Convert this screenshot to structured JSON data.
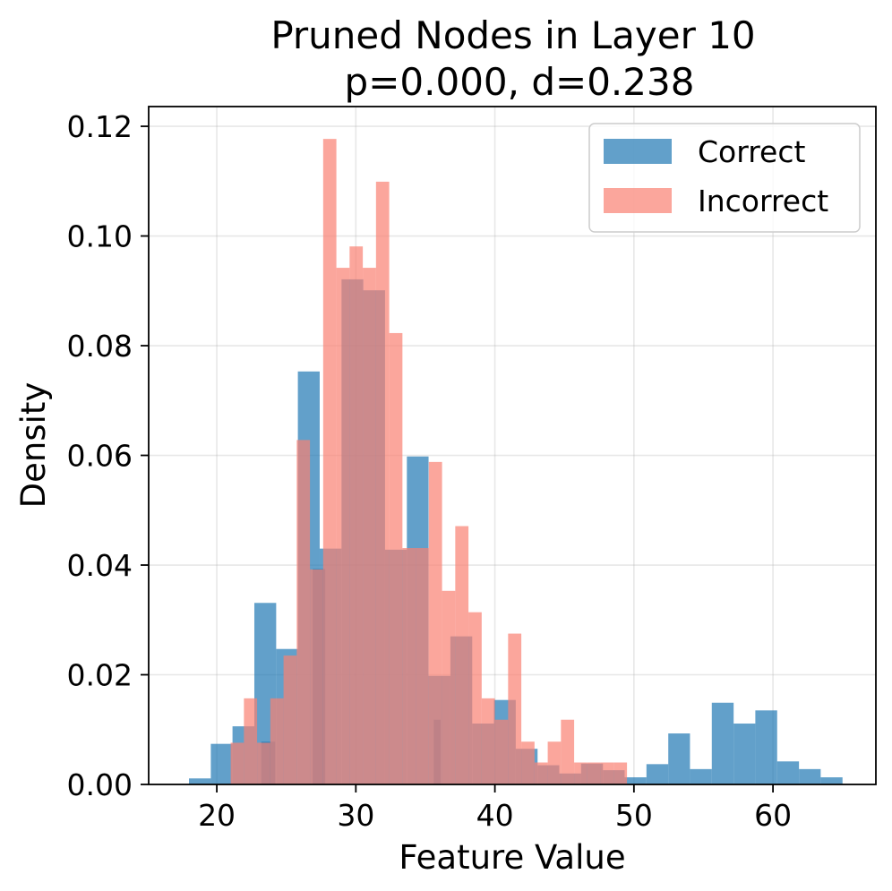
{
  "chart_data": {
    "type": "bar",
    "title": "Pruned Nodes in Layer 10",
    "subtitle": "p=0.000, d=0.238",
    "xlabel": "Feature Value",
    "ylabel": "Density",
    "xlim": [
      15.1,
      67.4
    ],
    "ylim": [
      0,
      0.1236
    ],
    "xticks": [
      20,
      30,
      40,
      50,
      60
    ],
    "yticks": [
      0.0,
      0.02,
      0.04,
      0.06,
      0.08,
      0.1,
      0.12
    ],
    "grid": true,
    "legend_position": "top-right",
    "series": [
      {
        "name": "Correct",
        "color": "#1f77b4",
        "opacity": 0.7,
        "bins": [
          [
            18.0,
            19.57,
            0.0011
          ],
          [
            19.57,
            21.13,
            0.0074
          ],
          [
            21.13,
            22.7,
            0.0106
          ],
          [
            22.7,
            24.27,
            0.0331
          ],
          [
            23.2,
            24.2,
            0.0078
          ],
          [
            24.27,
            25.83,
            0.0247
          ],
          [
            25.83,
            27.4,
            0.0753
          ],
          [
            26.9,
            27.8,
            0.0393
          ],
          [
            27.4,
            28.97,
            0.043
          ],
          [
            28.97,
            30.53,
            0.0921
          ],
          [
            30.53,
            32.1,
            0.0901
          ],
          [
            32.1,
            33.67,
            0.0428
          ],
          [
            33.67,
            35.23,
            0.0598
          ],
          [
            35.23,
            36.8,
            0.0198
          ],
          [
            35.6,
            36.1,
            0.0118
          ],
          [
            36.8,
            38.37,
            0.027
          ],
          [
            38.37,
            39.93,
            0.0111
          ],
          [
            39.93,
            41.5,
            0.0154
          ],
          [
            41.5,
            43.07,
            0.0065
          ],
          [
            43.07,
            44.63,
            0.0035
          ],
          [
            44.63,
            46.2,
            0.002
          ],
          [
            46.2,
            47.77,
            0.0038
          ],
          [
            47.77,
            49.33,
            0.0026
          ],
          [
            49.33,
            50.9,
            0.0013
          ],
          [
            50.9,
            52.47,
            0.0037
          ],
          [
            52.47,
            54.03,
            0.0093
          ],
          [
            54.03,
            55.6,
            0.0028
          ],
          [
            55.6,
            57.17,
            0.0149
          ],
          [
            57.17,
            58.73,
            0.0111
          ],
          [
            58.73,
            60.3,
            0.0135
          ],
          [
            60.3,
            61.87,
            0.0042
          ],
          [
            61.87,
            63.43,
            0.0028
          ],
          [
            63.43,
            65.0,
            0.0013
          ]
        ]
      },
      {
        "name": "Incorrect",
        "color": "#fa8072",
        "opacity": 0.7,
        "bins": [
          [
            21.0,
            21.95,
            0.0076
          ],
          [
            21.95,
            22.9,
            0.0157
          ],
          [
            22.9,
            23.85,
            0.0076
          ],
          [
            23.85,
            24.8,
            0.0157
          ],
          [
            24.8,
            25.75,
            0.0235
          ],
          [
            25.75,
            26.7,
            0.0628
          ],
          [
            26.7,
            27.65,
            0.0392
          ],
          [
            27.65,
            28.6,
            0.1177
          ],
          [
            28.6,
            29.55,
            0.0942
          ],
          [
            29.55,
            30.5,
            0.0981
          ],
          [
            30.5,
            31.45,
            0.0942
          ],
          [
            31.45,
            32.4,
            0.1099
          ],
          [
            32.4,
            33.35,
            0.0823
          ],
          [
            33.35,
            34.3,
            0.0431
          ],
          [
            34.3,
            35.25,
            0.0431
          ],
          [
            35.25,
            36.2,
            0.0588
          ],
          [
            36.2,
            37.15,
            0.0353
          ],
          [
            37.15,
            38.1,
            0.0471
          ],
          [
            38.1,
            39.05,
            0.0314
          ],
          [
            39.05,
            40.0,
            0.0157
          ],
          [
            40.0,
            40.95,
            0.0118
          ],
          [
            40.95,
            41.9,
            0.0275
          ],
          [
            41.9,
            42.85,
            0.0078
          ],
          [
            42.85,
            43.8,
            0.004
          ],
          [
            43.8,
            44.75,
            0.0078
          ],
          [
            44.75,
            45.7,
            0.0118
          ],
          [
            45.7,
            46.65,
            0.004
          ],
          [
            46.65,
            47.6,
            0.004
          ],
          [
            47.6,
            48.55,
            0.004
          ],
          [
            48.55,
            49.5,
            0.004
          ]
        ]
      }
    ]
  }
}
